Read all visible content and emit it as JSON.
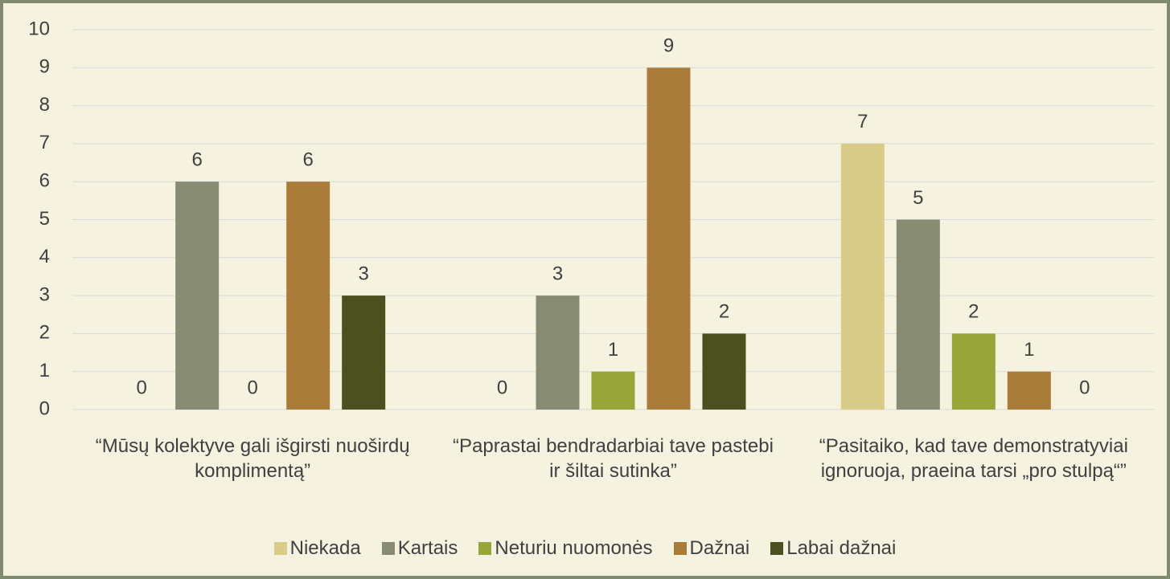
{
  "chart_data": {
    "type": "bar",
    "categories": [
      "“Mūsų kolektyve gali išgirsti nuoširdų komplimentą”",
      "“Paprastai bendradarbiai tave pastebi ir šiltai sutinka”",
      "“Pasitaiko, kad tave demonstratyviai ignoruoja, praeina tarsi „pro stulpą“”"
    ],
    "series": [
      {
        "name": "Niekada",
        "color": "#d9cc88",
        "values": [
          0,
          0,
          7
        ]
      },
      {
        "name": "Kartais",
        "color": "#878b72",
        "values": [
          6,
          3,
          5
        ]
      },
      {
        "name": "Neturiu nuomonės",
        "color": "#98a53a",
        "values": [
          0,
          1,
          2
        ]
      },
      {
        "name": "Dažnai",
        "color": "#a97c3a",
        "values": [
          6,
          9,
          1
        ]
      },
      {
        "name": "Labai dažnai",
        "color": "#4a501e",
        "values": [
          3,
          2,
          0
        ]
      }
    ],
    "ylim": [
      0,
      10
    ],
    "yticks": [
      0,
      1,
      2,
      3,
      4,
      5,
      6,
      7,
      8,
      9,
      10
    ],
    "grid": true,
    "legend": "bottom"
  }
}
